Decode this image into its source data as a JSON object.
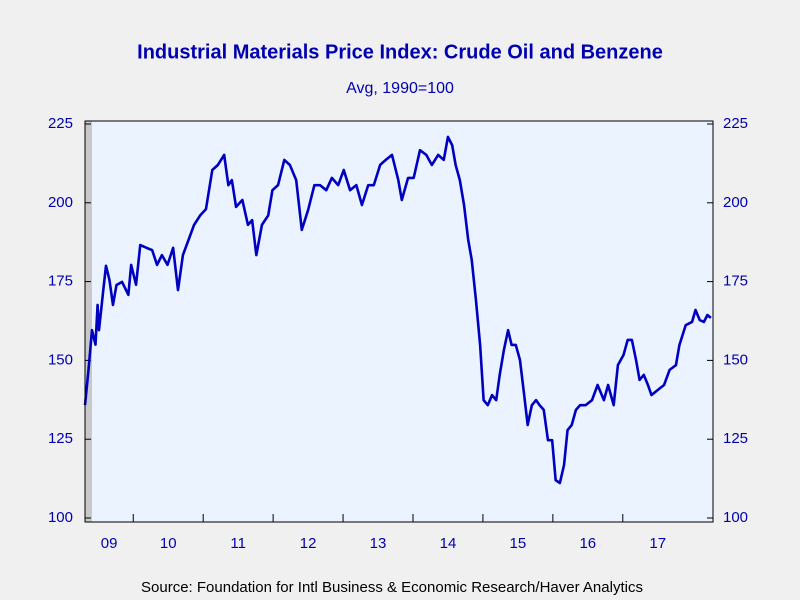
{
  "chart_data": {
    "type": "line",
    "title": "Industrial Materials Price Index: Crude Oil and Benzene",
    "subtitle": "Avg, 1990=100",
    "source": "Source:  Foundation for Intl Business & Economic Research/Haver Analytics",
    "x": [
      2009.31,
      2009.36,
      2009.41,
      2009.46,
      2009.49,
      2009.51,
      2009.57,
      2009.61,
      2009.66,
      2009.71,
      2009.76,
      2009.84,
      2009.93,
      2009.97,
      2010.04,
      2010.1,
      2010.19,
      2010.27,
      2010.34,
      2010.41,
      2010.49,
      2010.57,
      2010.64,
      2010.71,
      2010.79,
      2010.87,
      2010.96,
      2011.04,
      2011.13,
      2011.21,
      2011.3,
      2011.36,
      2011.41,
      2011.47,
      2011.56,
      2011.64,
      2011.7,
      2011.76,
      2011.84,
      2011.93,
      2011.99,
      2012.07,
      2012.16,
      2012.24,
      2012.33,
      2012.41,
      2012.5,
      2012.59,
      2012.67,
      2012.76,
      2012.84,
      2012.93,
      2013.01,
      2013.1,
      2013.19,
      2013.27,
      2013.36,
      2013.44,
      2013.53,
      2013.61,
      2013.7,
      2013.79,
      2013.84,
      2013.93,
      2014.01,
      2014.1,
      2014.19,
      2014.27,
      2014.36,
      2014.44,
      2014.5,
      2014.56,
      2014.61,
      2014.67,
      2014.73,
      2014.79,
      2014.84,
      2014.9,
      2014.96,
      2015.01,
      2015.07,
      2015.13,
      2015.19,
      2015.24,
      2015.3,
      2015.36,
      2015.41,
      2015.47,
      2015.53,
      2015.59,
      2015.64,
      2015.7,
      2015.76,
      2015.81,
      2015.87,
      2015.93,
      2015.99,
      2016.04,
      2016.1,
      2016.16,
      2016.21,
      2016.27,
      2016.33,
      2016.39,
      2016.47,
      2016.56,
      2016.64,
      2016.73,
      2016.79,
      2016.87,
      2016.93,
      2017.01,
      2017.07,
      2017.13,
      2017.19,
      2017.24,
      2017.3,
      2017.36,
      2017.41,
      2017.5,
      2017.59,
      2017.67,
      2017.76,
      2017.81,
      2017.9,
      2017.99,
      2018.04,
      2018.1,
      2018.16,
      2018.21,
      2018.26
    ],
    "series": [
      {
        "color": "#0000c0",
        "values": [
          135.8,
          147,
          159.6,
          155,
          167.6,
          159.6,
          172,
          180,
          175.5,
          167.6,
          173.9,
          174.9,
          170.8,
          180.3,
          174,
          186.6,
          185.7,
          185,
          180.3,
          183.4,
          180.3,
          185.7,
          172.3,
          183.4,
          188.2,
          193,
          196.1,
          198,
          210.4,
          212,
          215.2,
          205.6,
          207.2,
          198.7,
          200.9,
          193,
          194.5,
          183.4,
          193,
          196,
          204,
          205.6,
          213.6,
          212,
          207.2,
          191.4,
          197.7,
          205.6,
          205.6,
          204,
          207.9,
          205.6,
          210.4,
          204,
          205.6,
          199.3,
          205.6,
          205.6,
          212,
          213.6,
          215.2,
          207.2,
          200.9,
          207.9,
          207.9,
          216.7,
          215.2,
          212,
          215.2,
          213.6,
          220.9,
          218.3,
          212,
          207.2,
          199.3,
          188.2,
          181.9,
          169.2,
          154.9,
          137.4,
          135.8,
          139,
          137.4,
          145.4,
          153.3,
          159.6,
          154.9,
          154.9,
          150.1,
          139,
          129.5,
          135.8,
          137.4,
          135.8,
          134.3,
          124.7,
          124.7,
          112,
          111.1,
          116.8,
          127.9,
          129.5,
          134.3,
          135.8,
          135.8,
          137.4,
          142.2,
          137.4,
          142.2,
          135.8,
          148.5,
          151.7,
          156.5,
          156.5,
          150.1,
          143.8,
          145.4,
          142.2,
          139,
          140.6,
          142.2,
          147,
          148.5,
          154.9,
          161.2,
          162.2,
          166,
          162.8,
          162.2,
          164.4,
          163.5
        ]
      }
    ],
    "xlim": [
      2009.31,
      2018.29
    ],
    "xticks": [
      {
        "value": 2009,
        "label": "09"
      },
      {
        "value": 2010,
        "label": "10"
      },
      {
        "value": 2011,
        "label": "11"
      },
      {
        "value": 2012,
        "label": "12"
      },
      {
        "value": 2013,
        "label": "13"
      },
      {
        "value": 2014,
        "label": "14"
      },
      {
        "value": 2015,
        "label": "15"
      },
      {
        "value": 2016,
        "label": "16"
      },
      {
        "value": 2017,
        "label": "17"
      }
    ],
    "ylim": [
      100,
      225
    ],
    "yticks": [
      100,
      125,
      150,
      175,
      200,
      225
    ],
    "y2lim": [
      100,
      225
    ],
    "y2ticks": [
      100,
      125,
      150,
      175,
      200,
      225
    ]
  }
}
